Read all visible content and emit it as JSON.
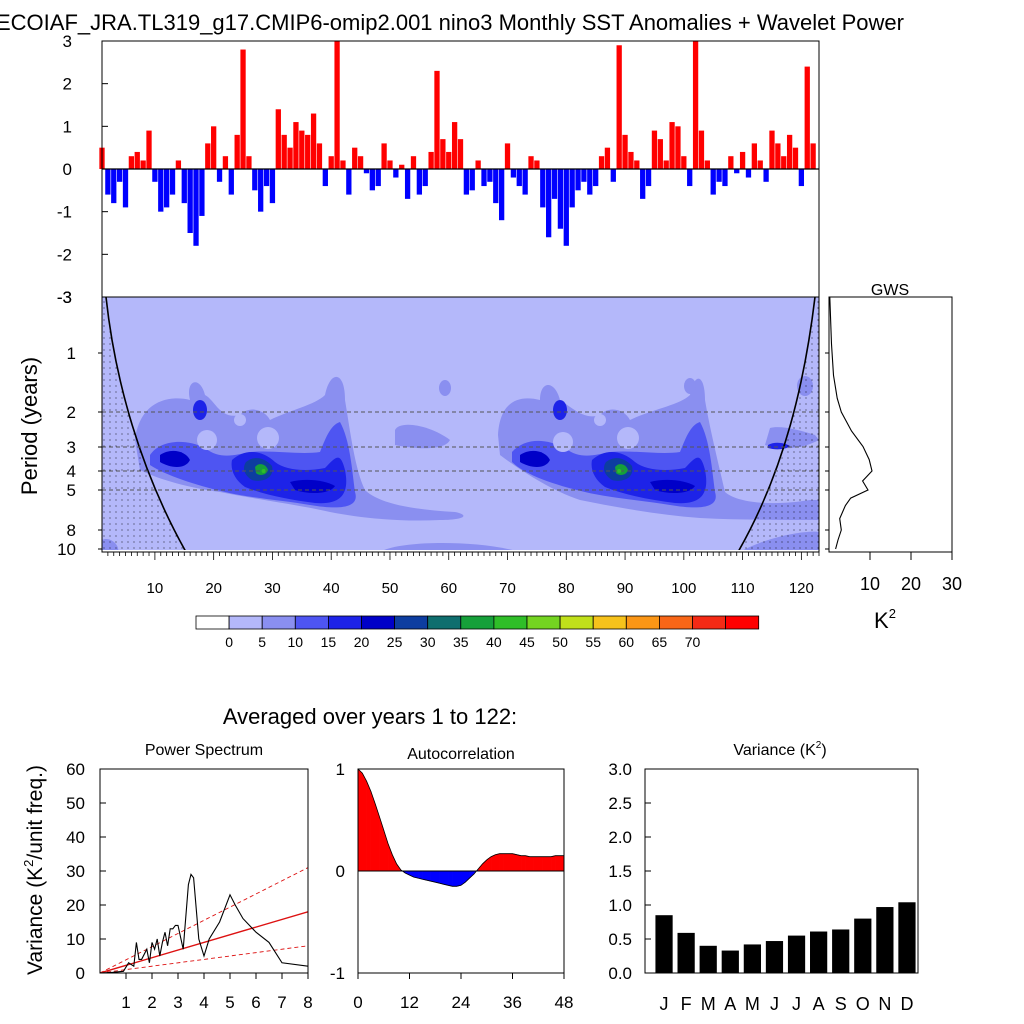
{
  "page": {
    "title": "ECOIAF_JRA.TL319_g17.CMIP6-omip2.001 nino3 Monthly SST Anomalies + Wavelet Power",
    "averaged_title": "Averaged over years 1 to 122:"
  },
  "colors": {
    "positive": "#ff0000",
    "negative": "#0000ff",
    "bar": "#000000",
    "fit_line": "#dd1111"
  },
  "chart_data": [
    {
      "id": "sst_anomaly",
      "type": "bar",
      "title": "ECOIAF_JRA.TL319_g17.CMIP6-omip2.001 nino3 Monthly SST Anomalies + Wavelet Power",
      "xlabel": "",
      "ylabel": "",
      "xlim": [
        1,
        123
      ],
      "ylim": [
        -3,
        3
      ],
      "yticks": [
        "3",
        "2",
        "1",
        "0",
        "-1",
        "-2",
        "-3"
      ],
      "fill_positive": "red",
      "fill_negative": "blue",
      "x": [
        1,
        2,
        3,
        4,
        5,
        6,
        7,
        8,
        9,
        10,
        11,
        12,
        13,
        14,
        15,
        16,
        17,
        18,
        19,
        20,
        21,
        22,
        23,
        24,
        25,
        26,
        27,
        28,
        29,
        30,
        31,
        32,
        33,
        34,
        35,
        36,
        37,
        38,
        39,
        40,
        41,
        42,
        43,
        44,
        45,
        46,
        47,
        48,
        49,
        50,
        51,
        52,
        53,
        54,
        55,
        56,
        57,
        58,
        59,
        60,
        61,
        62,
        63,
        64,
        65,
        66,
        67,
        68,
        69,
        70,
        71,
        72,
        73,
        74,
        75,
        76,
        77,
        78,
        79,
        80,
        81,
        82,
        83,
        84,
        85,
        86,
        87,
        88,
        89,
        90,
        91,
        92,
        93,
        94,
        95,
        96,
        97,
        98,
        99,
        100,
        101,
        102,
        103,
        104,
        105,
        106,
        107,
        108,
        109,
        110,
        111,
        112,
        113,
        114,
        115,
        116,
        117,
        118,
        119,
        120,
        121,
        122
      ],
      "values": [
        0.5,
        -0.6,
        -0.8,
        -0.3,
        -0.9,
        0.3,
        0.4,
        0.2,
        0.9,
        -0.3,
        -1.0,
        -0.9,
        -0.6,
        0.2,
        -0.8,
        -1.5,
        -1.8,
        -1.1,
        0.6,
        1.0,
        -0.3,
        0.3,
        -0.6,
        0.8,
        2.8,
        0.3,
        -0.5,
        -1.0,
        -0.4,
        -0.8,
        1.4,
        0.8,
        0.5,
        1.1,
        0.9,
        0.8,
        1.3,
        0.6,
        -0.4,
        0.3,
        3.0,
        0.2,
        -0.6,
        0.5,
        0.3,
        -0.1,
        -0.5,
        -0.4,
        0.6,
        0.2,
        -0.2,
        0.1,
        -0.7,
        0.3,
        -0.6,
        -0.4,
        0.4,
        2.3,
        0.7,
        0.4,
        1.1,
        0.7,
        -0.6,
        -0.5,
        0.2,
        -0.4,
        -0.3,
        -0.8,
        -1.2,
        0.6,
        -0.2,
        -0.4,
        -0.6,
        0.3,
        0.2,
        -0.9,
        -1.6,
        -0.7,
        -1.4,
        -1.8,
        -0.9,
        -0.5,
        -0.3,
        -0.6,
        -0.4,
        0.3,
        0.5,
        -0.3,
        2.9,
        0.8,
        0.4,
        0.2,
        -0.7,
        -0.4,
        0.9,
        0.7,
        0.2,
        1.1,
        1.0,
        0.3,
        -0.4,
        3.0,
        0.9,
        0.2,
        -0.6,
        -0.3,
        -0.4,
        0.3,
        -0.1,
        0.4,
        -0.2,
        0.6,
        0.2,
        -0.3,
        0.9,
        0.6,
        0.3,
        0.8,
        0.5,
        -0.4,
        2.4,
        0.6
      ]
    },
    {
      "id": "wavelet_power",
      "type": "heatmap",
      "xlabel": "",
      "ylabel": "Period (years)",
      "xticks": [
        "10",
        "20",
        "30",
        "40",
        "50",
        "60",
        "70",
        "80",
        "90",
        "100",
        "110",
        "120"
      ],
      "yticks": [
        "1",
        "2",
        "3",
        "4",
        "5",
        "8",
        "10"
      ],
      "xlim": [
        1,
        123
      ],
      "colorbar_labels": [
        "0",
        "5",
        "10",
        "15",
        "20",
        "25",
        "30",
        "35",
        "40",
        "45",
        "50",
        "55",
        "60",
        "65",
        "70"
      ],
      "colorbar_colors": [
        "#ffffff",
        "#b4b8fa",
        "#8a8ff0",
        "#4e55f2",
        "#1d23e8",
        "#0000c8",
        "#0d3da0",
        "#0f6e6e",
        "#16a03a",
        "#2fbe28",
        "#74d421",
        "#c0e01a",
        "#f6c21b",
        "#fb9616",
        "#f86617",
        "#f42a15",
        "#ff0000"
      ],
      "maxima": [
        {
          "x": 28.5,
          "period": 4.0,
          "power": 32
        },
        {
          "x": 89,
          "period": 4.0,
          "power": 32
        }
      ]
    },
    {
      "id": "gws",
      "type": "line",
      "title": "GWS",
      "xlabel": "K2",
      "xticks": [
        "10",
        "20",
        "30"
      ],
      "xlim": [
        0,
        30
      ],
      "period": [
        0.5,
        0.9,
        1.3,
        1.7,
        2.0,
        2.5,
        3.0,
        3.5,
        4.0,
        4.5,
        5.0,
        5.5,
        6.0,
        7.0,
        8.0,
        9.0,
        10.0
      ],
      "power": [
        0.2,
        0.6,
        1.1,
        2.0,
        3.0,
        5.5,
        8.3,
        9.8,
        10.5,
        8.2,
        9.5,
        5.3,
        4.0,
        2.6,
        3.0,
        2.2,
        1.6
      ]
    },
    {
      "id": "power_spectrum",
      "type": "line",
      "title": "Power Spectrum",
      "xlabel": "",
      "ylabel": "Variance (K2/unit freq.)",
      "xlim": [
        0,
        8
      ],
      "ylim": [
        0,
        60
      ],
      "xticks": [
        "1",
        "2",
        "3",
        "4",
        "5",
        "6",
        "7",
        "8"
      ],
      "yticks": [
        "0",
        "10",
        "20",
        "30",
        "40",
        "50",
        "60"
      ],
      "x": [
        0,
        0.5,
        0.9,
        1.1,
        1.3,
        1.4,
        1.5,
        1.6,
        1.8,
        1.9,
        2.0,
        2.1,
        2.2,
        2.3,
        2.4,
        2.5,
        2.6,
        2.7,
        2.8,
        2.9,
        3.0,
        3.2,
        3.4,
        3.5,
        3.6,
        3.8,
        4.0,
        4.2,
        4.6,
        5.0,
        5.2,
        5.5,
        6.0,
        6.5,
        7.0,
        8.0
      ],
      "values": [
        0,
        0.2,
        0.5,
        3,
        2,
        9,
        4,
        4,
        7,
        3,
        9,
        7,
        10,
        5,
        9,
        12,
        8,
        13,
        13,
        14,
        14,
        7,
        26,
        29,
        28,
        10,
        5,
        10,
        15,
        23,
        20,
        16,
        12,
        9,
        3,
        2
      ],
      "fit": {
        "x": [
          0,
          8
        ],
        "values": [
          0,
          18
        ]
      },
      "conf_upper": {
        "x": [
          0,
          8
        ],
        "values": [
          0,
          31
        ]
      },
      "conf_lower": {
        "x": [
          0,
          8
        ],
        "values": [
          0,
          8
        ]
      }
    },
    {
      "id": "autocorrelation",
      "type": "area",
      "title": "Autocorrelation",
      "xlim": [
        0,
        48
      ],
      "ylim": [
        -1,
        1
      ],
      "xticks": [
        "0",
        "12",
        "24",
        "36",
        "48"
      ],
      "yticks": [
        "1",
        "0",
        "-1"
      ],
      "x": [
        0,
        1,
        2,
        3,
        4,
        5,
        6,
        7,
        8,
        9,
        10,
        11,
        12,
        13,
        14,
        15,
        16,
        17,
        18,
        19,
        20,
        21,
        22,
        23,
        24,
        25,
        26,
        27,
        28,
        29,
        30,
        31,
        32,
        33,
        34,
        35,
        36,
        37,
        38,
        39,
        40,
        41,
        42,
        43,
        44,
        45,
        46,
        47,
        48
      ],
      "values": [
        1.0,
        0.96,
        0.88,
        0.78,
        0.66,
        0.53,
        0.4,
        0.27,
        0.16,
        0.07,
        0.01,
        -0.02,
        -0.04,
        -0.06,
        -0.07,
        -0.08,
        -0.09,
        -0.1,
        -0.11,
        -0.12,
        -0.13,
        -0.14,
        -0.15,
        -0.15,
        -0.14,
        -0.11,
        -0.07,
        -0.03,
        0.02,
        0.07,
        0.11,
        0.14,
        0.16,
        0.17,
        0.17,
        0.17,
        0.17,
        0.16,
        0.15,
        0.15,
        0.14,
        0.14,
        0.14,
        0.14,
        0.14,
        0.14,
        0.15,
        0.15,
        0.15
      ]
    },
    {
      "id": "monthly_variance",
      "type": "bar",
      "title": "Variance (K2)",
      "categories": [
        "J",
        "F",
        "M",
        "A",
        "M",
        "J",
        "J",
        "A",
        "S",
        "O",
        "N",
        "D"
      ],
      "values": [
        0.85,
        0.59,
        0.4,
        0.33,
        0.42,
        0.47,
        0.55,
        0.61,
        0.64,
        0.8,
        0.97,
        1.04
      ],
      "ylim": [
        0,
        3.0
      ],
      "yticks": [
        "3.0",
        "2.5",
        "2.0",
        "1.5",
        "1.0",
        "0.5",
        "0.0"
      ]
    }
  ]
}
